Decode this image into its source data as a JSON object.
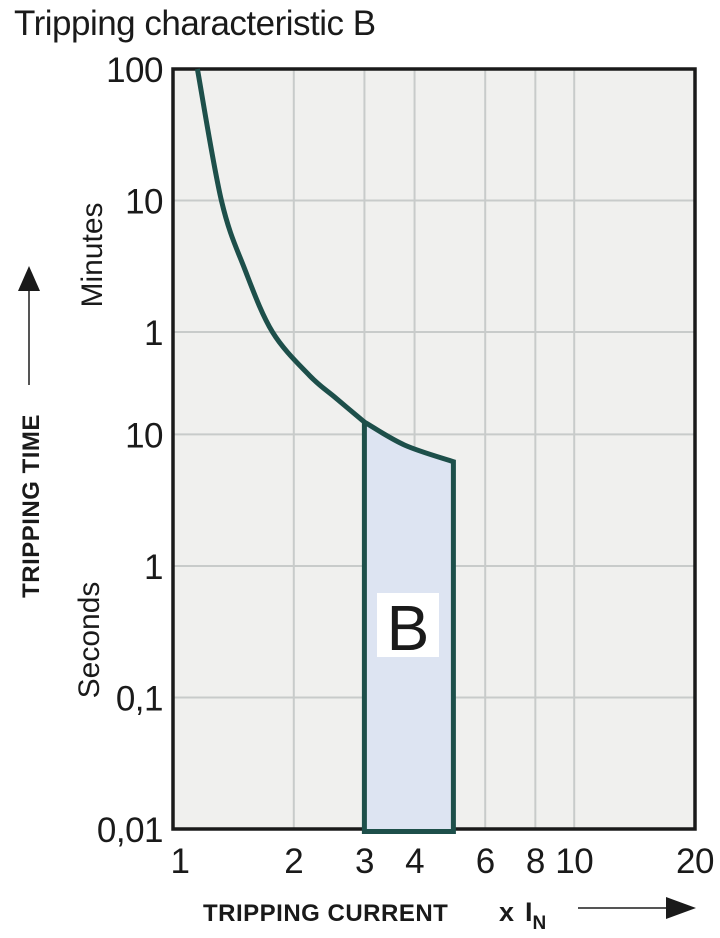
{
  "title": "Tripping characteristic B",
  "colors": {
    "curve": "#1d4f4a",
    "region_fill": "#dde4f2",
    "plot_bg": "#f0f0ee",
    "grid": "#c8cbca",
    "border": "#1a1a1a",
    "text": "#1a1a1a",
    "arrow_shaft": "#555555"
  },
  "y_axis": {
    "label": "TRIPPING TIME",
    "units": [
      {
        "label": "Minutes"
      },
      {
        "label": "Seconds"
      }
    ],
    "ticks": [
      {
        "label": "100",
        "unit": "minutes",
        "seconds": 6000,
        "grid": false
      },
      {
        "label": "10",
        "unit": "minutes",
        "seconds": 600,
        "grid": true
      },
      {
        "label": "1",
        "unit": "minutes",
        "seconds": 60,
        "grid": true
      },
      {
        "label": "10",
        "unit": "seconds",
        "seconds": 10,
        "grid": true
      },
      {
        "label": "1",
        "unit": "seconds",
        "seconds": 1,
        "grid": true
      },
      {
        "label": "0,1",
        "unit": "seconds",
        "seconds": 0.1,
        "grid": true
      },
      {
        "label": "0,01",
        "unit": "seconds",
        "seconds": 0.01,
        "grid": false
      }
    ]
  },
  "x_axis": {
    "label": "TRIPPING CURRENT",
    "multiplier_prefix": "x",
    "multiplier_symbol": "I",
    "multiplier_sub": "N",
    "ticks": [
      {
        "label": "1",
        "value": 1,
        "grid": false
      },
      {
        "label": "2",
        "value": 2,
        "grid": true
      },
      {
        "label": "3",
        "value": 3,
        "grid": true
      },
      {
        "label": "4",
        "value": 4,
        "grid": true
      },
      {
        "label": "6",
        "value": 6,
        "grid": true
      },
      {
        "label": "8",
        "value": 8,
        "grid": true
      },
      {
        "label": "10",
        "value": 10,
        "grid": true
      },
      {
        "label": "20",
        "value": 20,
        "grid": false
      }
    ]
  },
  "chart_data": {
    "type": "area",
    "title": "Tripping characteristic B",
    "xlabel": "TRIPPING CURRENT x IN",
    "ylabel": "TRIPPING TIME",
    "x_range": [
      1,
      20
    ],
    "y_range_seconds": [
      0.01,
      6000
    ],
    "x_scale": "log",
    "y_scale": "log",
    "grid": true,
    "curve": {
      "name": "thermal-trip-curve",
      "points_x_in_vs_seconds": [
        [
          1.15,
          6000
        ],
        [
          1.32,
          600
        ],
        [
          1.51,
          180
        ],
        [
          1.77,
          60
        ],
        [
          2.19,
          28
        ],
        [
          2.54,
          19
        ],
        [
          3.0,
          12.4
        ]
      ]
    },
    "region": {
      "name": "instantaneous-trip-band",
      "label": "B",
      "x_min": 3,
      "x_max": 5,
      "top_edge_x_in_vs_seconds": [
        [
          3.0,
          12.4
        ],
        [
          3.78,
          8.3
        ],
        [
          5.0,
          6.2
        ]
      ],
      "bottom_seconds": 0.01
    }
  }
}
